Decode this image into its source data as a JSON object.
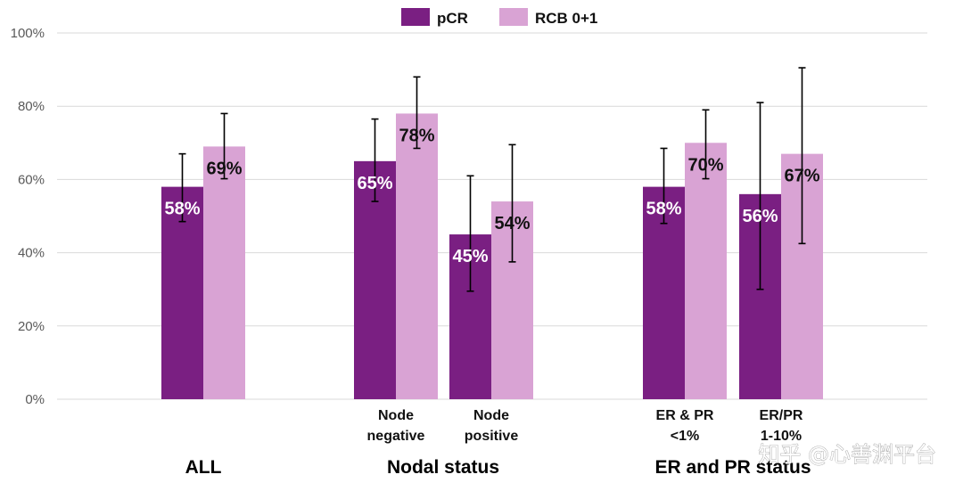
{
  "chart_data": {
    "type": "bar",
    "y_ticks": [
      "0%",
      "20%",
      "40%",
      "60%",
      "80%",
      "100%"
    ],
    "ylim": [
      0,
      100
    ],
    "grid": true,
    "legend_position": "top-center",
    "series": [
      {
        "name": "pCR",
        "color": "#7a1f82",
        "label_color": "#ffffff"
      },
      {
        "name": "RCB 0+1",
        "color": "#d9a3d4",
        "label_color": "#111111"
      }
    ],
    "categories": [
      {
        "label_lines": [],
        "values": [
          58,
          69
        ],
        "labels": [
          "58%",
          "69%"
        ],
        "err_low": [
          48.5,
          60.2
        ],
        "err_high": [
          67,
          78
        ]
      },
      {
        "label_lines": [
          "Node",
          "negative"
        ],
        "values": [
          65,
          78
        ],
        "labels": [
          "65%",
          "78%"
        ],
        "err_low": [
          54,
          68.5
        ],
        "err_high": [
          76.5,
          88
        ]
      },
      {
        "label_lines": [
          "Node",
          "positive"
        ],
        "values": [
          45,
          54
        ],
        "labels": [
          "45%",
          "54%"
        ],
        "err_low": [
          29.5,
          37.5
        ],
        "err_high": [
          61,
          69.5
        ]
      },
      {
        "label_lines": [
          "ER & PR",
          "<1%"
        ],
        "values": [
          58,
          70
        ],
        "labels": [
          "58%",
          "70%"
        ],
        "err_low": [
          48,
          60.2
        ],
        "err_high": [
          68.5,
          79
        ]
      },
      {
        "label_lines": [
          "ER/PR",
          "1-10%"
        ],
        "values": [
          56,
          67
        ],
        "labels": [
          "56%",
          "67%"
        ],
        "err_low": [
          30,
          42.5
        ],
        "err_high": [
          81,
          90.5
        ]
      }
    ],
    "groups": [
      {
        "label": "ALL",
        "categories": [
          0
        ]
      },
      {
        "label": "Nodal status",
        "categories": [
          1,
          2
        ]
      },
      {
        "label": "ER and PR status",
        "categories": [
          3,
          4
        ]
      }
    ]
  },
  "watermark": "知乎 @心善渊平台"
}
